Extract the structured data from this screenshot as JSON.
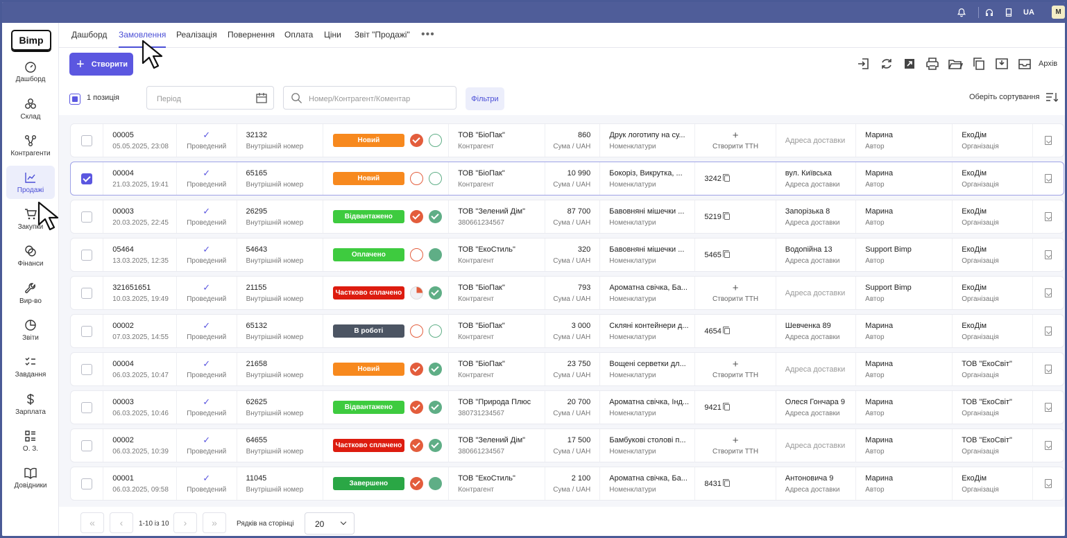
{
  "topbar": {
    "lang": "UA",
    "avatar": "M",
    "icons": [
      "bell-icon",
      "headset-icon",
      "book-icon"
    ]
  },
  "logo": "Bimp",
  "sidebar": {
    "items": [
      {
        "label": "Дашборд",
        "icon": "gauge-icon"
      },
      {
        "label": "Склад",
        "icon": "boxes-icon"
      },
      {
        "label": "Контрагенти",
        "icon": "network-icon"
      },
      {
        "label": "Продажі",
        "icon": "chart-line-icon",
        "active": true
      },
      {
        "label": "Закупки",
        "icon": "cart-icon"
      },
      {
        "label": "Фінанси",
        "icon": "coins-icon"
      },
      {
        "label": "Вир-во",
        "icon": "wrench-icon"
      },
      {
        "label": "Звіти",
        "icon": "pie-chart-icon"
      },
      {
        "label": "Завдання",
        "icon": "checklist-icon"
      },
      {
        "label": "Зарплата",
        "icon": "dollar-icon"
      },
      {
        "label": "О. З.",
        "icon": "grid-list-icon"
      },
      {
        "label": "Довідники",
        "icon": "open-book-icon"
      }
    ]
  },
  "tabs": [
    "Дашборд",
    "Замовлення",
    "Реалізація",
    "Повернення",
    "Оплата",
    "Ціни",
    "Звіт \"Продажі\""
  ],
  "active_tab": "Замовлення",
  "toolbar": {
    "create_label": "Створити",
    "archive_label": "Архів"
  },
  "filters": {
    "selected_count": "1 позиція",
    "period_placeholder": "Період",
    "search_placeholder": "Номер/Контрагент/Коментар",
    "filters_label": "Фільтри",
    "sort_label": "Оберіть сортування"
  },
  "colors": {
    "accent": "#5b57e0",
    "new": "#f7891e",
    "shipped": "#3ecb3f",
    "paid": "#3ecb3f",
    "partial": "#dd1c0f",
    "in_work": "#4c5563",
    "done": "#2aa745"
  },
  "rows": [
    {
      "checked": false,
      "number": "00005",
      "date": "05.05.2025, 23:08",
      "state": "Проведений",
      "internal": "32132",
      "internal_lbl": "Внутрішній номер",
      "status": "Новий",
      "status_color": "#f7891e",
      "pay": "red-fill",
      "ship": "green-empty",
      "contractor": "ТОВ \"БіоПак\"",
      "contractor_sub": "Контрагент",
      "sum": "860",
      "sum_lbl": "Сума / UAH",
      "items": "Друк логотипу на су...",
      "items_lbl": "Номенклатури",
      "ttn": "",
      "ttn_lbl": "Створити ТТН",
      "address": "",
      "address_lbl": "Адреса доставки",
      "author": "Марина",
      "author_lbl": "Автор",
      "org": "ЕкоДім",
      "org_lbl": "Організація"
    },
    {
      "checked": true,
      "number": "00004",
      "date": "21.03.2025, 19:41",
      "state": "Проведений",
      "internal": "65165",
      "internal_lbl": "Внутрішній номер",
      "status": "Новий",
      "status_color": "#f7891e",
      "pay": "red-empty",
      "ship": "green-empty",
      "contractor": "ТОВ \"БіоПак\"",
      "contractor_sub": "Контрагент",
      "sum": "10 990",
      "sum_lbl": "Сума / UAH",
      "items": "Бокоріз, Викрутка, ...",
      "items_lbl": "Номенклатури",
      "ttn": "3242",
      "ttn_lbl": "",
      "address": "вул. Київська",
      "address_lbl": "Адреса доставки",
      "author": "Марина",
      "author_lbl": "Автор",
      "org": "ЕкоДім",
      "org_lbl": "Організація"
    },
    {
      "checked": false,
      "number": "00003",
      "date": "20.03.2025, 22:45",
      "state": "Проведений",
      "internal": "26295",
      "internal_lbl": "Внутрішній номер",
      "status": "Відвантажено",
      "status_color": "#3ecb3f",
      "pay": "red-fill",
      "ship": "green-fill",
      "contractor": "ТОВ \"Зелений Дім\"",
      "contractor_sub": "380661234567",
      "sum": "87 700",
      "sum_lbl": "Сума / UAH",
      "items": "Бавовняні мішечки ...",
      "items_lbl": "Номенклатури",
      "ttn": "5219",
      "ttn_lbl": "",
      "address": "Запорізька 8",
      "address_lbl": "Адреса доставки",
      "author": "Марина",
      "author_lbl": "Автор",
      "org": "ЕкоДім",
      "org_lbl": "Організація"
    },
    {
      "checked": false,
      "number": "05464",
      "date": "13.03.2025, 12:35",
      "state": "Проведений",
      "internal": "54643",
      "internal_lbl": "Внутрішній номер",
      "status": "Оплачено",
      "status_color": "#3ecb3f",
      "pay": "red-empty",
      "ship": "green-solid",
      "contractor": "ТОВ \"ЕкоСтиль\"",
      "contractor_sub": "Контрагент",
      "sum": "320",
      "sum_lbl": "Сума / UAH",
      "items": "Бавовняні мішечки ...",
      "items_lbl": "Номенклатури",
      "ttn": "5465",
      "ttn_lbl": "",
      "address": "Водопійна 13",
      "address_lbl": "Адреса доставки",
      "author": "Support Bimp",
      "author_lbl": "Автор",
      "org": "ЕкоДім",
      "org_lbl": "Організація"
    },
    {
      "checked": false,
      "number": "321651651",
      "date": "10.03.2025, 19:49",
      "state": "Проведений",
      "internal": "21155",
      "internal_lbl": "Внутрішній номер",
      "status": "Частково сплачено",
      "status_color": "#dd1c0f",
      "pay": "partial",
      "ship": "green-fill",
      "contractor": "ТОВ \"БіоПак\"",
      "contractor_sub": "Контрагент",
      "sum": "793",
      "sum_lbl": "Сума / UAH",
      "items": "Ароматна свічка, Ба...",
      "items_lbl": "Номенклатури",
      "ttn": "",
      "ttn_lbl": "Створити ТТН",
      "address": "",
      "address_lbl": "Адреса доставки",
      "author": "Support Bimp",
      "author_lbl": "Автор",
      "org": "ЕкоДім",
      "org_lbl": "Організація"
    },
    {
      "checked": false,
      "number": "00002",
      "date": "07.03.2025, 14:55",
      "state": "Проведений",
      "internal": "65132",
      "internal_lbl": "Внутрішній номер",
      "status": "В роботі",
      "status_color": "#4c5563",
      "pay": "red-empty",
      "ship": "green-empty",
      "contractor": "ТОВ \"БіоПак\"",
      "contractor_sub": "Контрагент",
      "sum": "3 000",
      "sum_lbl": "Сума / UAH",
      "items": "Скляні контейнери д...",
      "items_lbl": "Номенклатури",
      "ttn": "4654",
      "ttn_lbl": "",
      "address": "Шевченка 89",
      "address_lbl": "Адреса доставки",
      "author": "Марина",
      "author_lbl": "Автор",
      "org": "ЕкоДім",
      "org_lbl": "Організація"
    },
    {
      "checked": false,
      "number": "00004",
      "date": "06.03.2025, 10:47",
      "state": "Проведений",
      "internal": "21658",
      "internal_lbl": "Внутрішній номер",
      "status": "Новий",
      "status_color": "#f7891e",
      "pay": "red-fill",
      "ship": "green-fill",
      "contractor": "ТОВ \"БіоПак\"",
      "contractor_sub": "Контрагент",
      "sum": "23 750",
      "sum_lbl": "Сума / UAH",
      "items": "Вощені серветки дл...",
      "items_lbl": "Номенклатури",
      "ttn": "",
      "ttn_lbl": "Створити ТТН",
      "address": "",
      "address_lbl": "Адреса доставки",
      "author": "Марина",
      "author_lbl": "Автор",
      "org": "ТОВ \"ЕкоСвіт\"",
      "org_lbl": "Організація"
    },
    {
      "checked": false,
      "number": "00003",
      "date": "06.03.2025, 10:46",
      "state": "Проведений",
      "internal": "62625",
      "internal_lbl": "Внутрішній номер",
      "status": "Відвантажено",
      "status_color": "#3ecb3f",
      "pay": "red-fill",
      "ship": "green-fill",
      "contractor": "ТОВ \"Природа Плюс",
      "contractor_sub": "380731234567",
      "sum": "20 700",
      "sum_lbl": "Сума / UAH",
      "items": "Ароматна свічка, Інд...",
      "items_lbl": "Номенклатури",
      "ttn": "9421",
      "ttn_lbl": "",
      "address": "Олеся Гончара 9",
      "address_lbl": "Адреса доставки",
      "author": "Марина",
      "author_lbl": "Автор",
      "org": "ТОВ \"ЕкоСвіт\"",
      "org_lbl": "Організація"
    },
    {
      "checked": false,
      "number": "00002",
      "date": "06.03.2025, 10:39",
      "state": "Проведений",
      "internal": "64655",
      "internal_lbl": "Внутрішній номер",
      "status": "Частково сплачено",
      "status_color": "#dd1c0f",
      "pay": "red-fill",
      "ship": "green-fill",
      "contractor": "ТОВ \"Зелений Дім\"",
      "contractor_sub": "380661234567",
      "sum": "17 500",
      "sum_lbl": "Сума / UAH",
      "items": "Бамбукові столові п...",
      "items_lbl": "Номенклатури",
      "ttn": "",
      "ttn_lbl": "Створити ТТН",
      "address": "",
      "address_lbl": "Адреса доставки",
      "author": "Марина",
      "author_lbl": "Автор",
      "org": "ТОВ \"ЕкоСвіт\"",
      "org_lbl": "Організація"
    },
    {
      "checked": false,
      "number": "00001",
      "date": "06.03.2025, 09:58",
      "state": "Проведений",
      "internal": "11045",
      "internal_lbl": "Внутрішній номер",
      "status": "Завершено",
      "status_color": "#2aa745",
      "pay": "red-fill",
      "ship": "green-solid",
      "contractor": "ТОВ \"ЕкоСтиль\"",
      "contractor_sub": "Контрагент",
      "sum": "2 100",
      "sum_lbl": "Сума / UAH",
      "items": "Ароматна свічка, Ба...",
      "items_lbl": "Номенклатури",
      "ttn": "8431",
      "ttn_lbl": "",
      "address": "Антоновича 9",
      "address_lbl": "Адреса доставки",
      "author": "Марина",
      "author_lbl": "Автор",
      "org": "ЕкоДім",
      "org_lbl": "Організація"
    }
  ],
  "pager": {
    "range": "1-10 із 10",
    "rows_label": "Рядків на сторінці",
    "page_size": "20"
  }
}
